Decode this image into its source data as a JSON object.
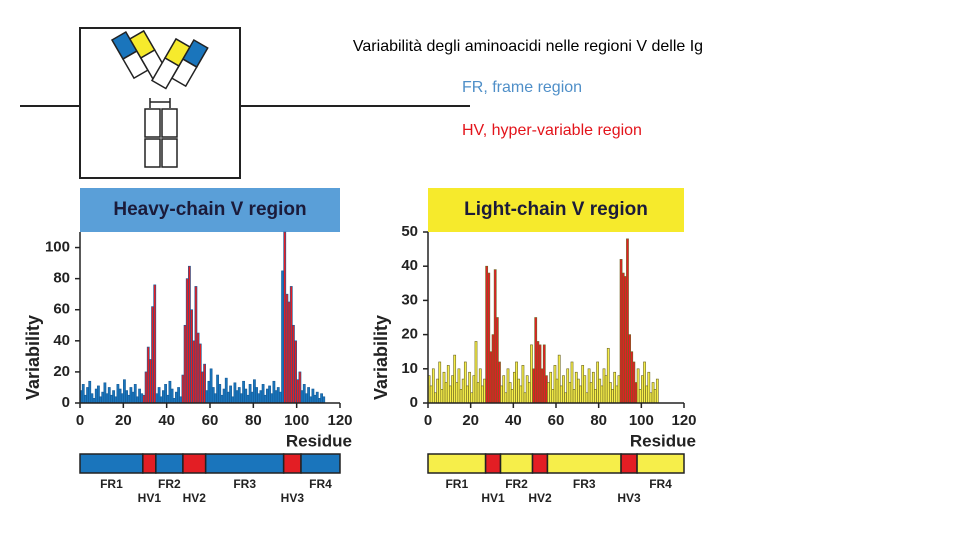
{
  "slide": {
    "title": "Variabilità degli aminoacidi nelle regioni V delle Ig",
    "legend": [
      {
        "text": "FR, frame region",
        "color": "#4f8fc8"
      },
      {
        "text": "HV, hyper-variable region",
        "color": "#e3141b"
      }
    ]
  },
  "chart_data": [
    {
      "type": "bar",
      "title": "Heavy-chain V region",
      "header_color": "#5a9fd8",
      "bar_edge": "#155a96",
      "y_label": "Variability",
      "x_label": "Residue",
      "xlim": [
        0,
        120
      ],
      "ylim": [
        0,
        110
      ],
      "xticks": [
        0,
        20,
        40,
        60,
        80,
        100,
        120
      ],
      "yticks": [
        0,
        20,
        40,
        60,
        80,
        100
      ],
      "x": [
        1,
        2,
        3,
        4,
        5,
        6,
        7,
        8,
        9,
        10,
        11,
        12,
        13,
        14,
        15,
        16,
        17,
        18,
        19,
        20,
        21,
        22,
        23,
        24,
        25,
        26,
        27,
        28,
        29,
        30,
        31,
        32,
        33,
        34,
        35,
        36,
        37,
        38,
        39,
        40,
        41,
        42,
        43,
        44,
        45,
        46,
        47,
        48,
        49,
        50,
        51,
        52,
        53,
        54,
        55,
        56,
        57,
        58,
        59,
        60,
        61,
        62,
        63,
        64,
        65,
        66,
        67,
        68,
        69,
        70,
        71,
        72,
        73,
        74,
        75,
        76,
        77,
        78,
        79,
        80,
        81,
        82,
        83,
        84,
        85,
        86,
        87,
        88,
        89,
        90,
        91,
        92,
        93,
        94,
        95,
        96,
        97,
        98,
        99,
        100,
        101,
        102,
        103,
        104,
        105,
        106,
        107,
        108,
        109,
        110,
        111,
        112,
        113
      ],
      "values": [
        8,
        12,
        5,
        10,
        14,
        6,
        3,
        9,
        11,
        4,
        7,
        13,
        6,
        10,
        5,
        8,
        4,
        12,
        9,
        6,
        15,
        8,
        5,
        10,
        7,
        12,
        4,
        9,
        6,
        5,
        20,
        36,
        28,
        62,
        76,
        6,
        10,
        4,
        8,
        12,
        5,
        14,
        9,
        3,
        7,
        10,
        4,
        18,
        50,
        80,
        88,
        60,
        40,
        75,
        45,
        38,
        20,
        25,
        8,
        14,
        22,
        10,
        6,
        18,
        12,
        5,
        9,
        16,
        7,
        11,
        4,
        13,
        8,
        10,
        6,
        14,
        9,
        5,
        12,
        7,
        15,
        10,
        6,
        8,
        12,
        5,
        9,
        11,
        6,
        14,
        8,
        10,
        7,
        85,
        110,
        70,
        65,
        75,
        50,
        40,
        15,
        20,
        8,
        12,
        6,
        10,
        4,
        9,
        5,
        7,
        3,
        6,
        4
      ],
      "regions": [
        {
          "label": "FR1",
          "start": 0,
          "end": 29,
          "color": "#1a75bc"
        },
        {
          "label": "HV1",
          "start": 29,
          "end": 35,
          "color": "#e31e24"
        },
        {
          "label": "FR2",
          "start": 35,
          "end": 47.5,
          "color": "#1a75bc"
        },
        {
          "label": "HV2",
          "start": 47.5,
          "end": 58,
          "color": "#e31e24"
        },
        {
          "label": "FR3",
          "start": 58,
          "end": 94,
          "color": "#1a75bc"
        },
        {
          "label": "HV3",
          "start": 94,
          "end": 102,
          "color": "#e31e24"
        },
        {
          "label": "FR4",
          "start": 102,
          "end": 120,
          "color": "#1a75bc"
        }
      ]
    },
    {
      "type": "bar",
      "title": "Light-chain V region",
      "header_color": "#f6ea2c",
      "bar_edge": "#6b6420",
      "y_label": "Variability",
      "x_label": "Residue",
      "xlim": [
        0,
        120
      ],
      "ylim": [
        0,
        50
      ],
      "xticks": [
        0,
        20,
        40,
        60,
        80,
        100,
        120
      ],
      "yticks": [
        0,
        10,
        20,
        30,
        40,
        50
      ],
      "x": [
        1,
        2,
        3,
        4,
        5,
        6,
        7,
        8,
        9,
        10,
        11,
        12,
        13,
        14,
        15,
        16,
        17,
        18,
        19,
        20,
        21,
        22,
        23,
        24,
        25,
        26,
        27,
        28,
        29,
        30,
        31,
        32,
        33,
        34,
        35,
        36,
        37,
        38,
        39,
        40,
        41,
        42,
        43,
        44,
        45,
        46,
        47,
        48,
        49,
        50,
        51,
        52,
        53,
        54,
        55,
        56,
        57,
        58,
        59,
        60,
        61,
        62,
        63,
        64,
        65,
        66,
        67,
        68,
        69,
        70,
        71,
        72,
        73,
        74,
        75,
        76,
        77,
        78,
        79,
        80,
        81,
        82,
        83,
        84,
        85,
        86,
        87,
        88,
        89,
        90,
        91,
        92,
        93,
        94,
        95,
        96,
        97,
        98,
        99,
        100,
        101,
        102,
        103,
        104,
        105,
        106,
        107,
        108
      ],
      "values": [
        8,
        5,
        10,
        3,
        7,
        12,
        4,
        9,
        6,
        11,
        5,
        8,
        14,
        6,
        10,
        4,
        7,
        12,
        5,
        9,
        3,
        8,
        18,
        6,
        10,
        5,
        7,
        40,
        38,
        15,
        20,
        39,
        25,
        12,
        5,
        8,
        3,
        10,
        6,
        4,
        9,
        12,
        7,
        5,
        11,
        3,
        8,
        6,
        17,
        10,
        25,
        18,
        17,
        10,
        17,
        8,
        6,
        9,
        4,
        11,
        7,
        14,
        5,
        8,
        3,
        10,
        6,
        12,
        4,
        9,
        7,
        5,
        11,
        8,
        3,
        10,
        6,
        9,
        4,
        12,
        7,
        5,
        10,
        8,
        16,
        6,
        4,
        9,
        5,
        8,
        42,
        38,
        37,
        48,
        20,
        15,
        12,
        6,
        10,
        4,
        8,
        12,
        5,
        9,
        3,
        6,
        4,
        7
      ],
      "regions": [
        {
          "label": "FR1",
          "start": 0,
          "end": 27,
          "color": "#f6ee4a"
        },
        {
          "label": "HV1",
          "start": 27,
          "end": 34,
          "color": "#e31e24"
        },
        {
          "label": "FR2",
          "start": 34,
          "end": 49,
          "color": "#f6ee4a"
        },
        {
          "label": "HV2",
          "start": 49,
          "end": 56,
          "color": "#e31e24"
        },
        {
          "label": "FR3",
          "start": 56,
          "end": 90.5,
          "color": "#f6ee4a"
        },
        {
          "label": "HV3",
          "start": 90.5,
          "end": 98,
          "color": "#e31e24"
        },
        {
          "label": "FR4",
          "start": 98,
          "end": 120,
          "color": "#f6ee4a"
        }
      ]
    }
  ]
}
